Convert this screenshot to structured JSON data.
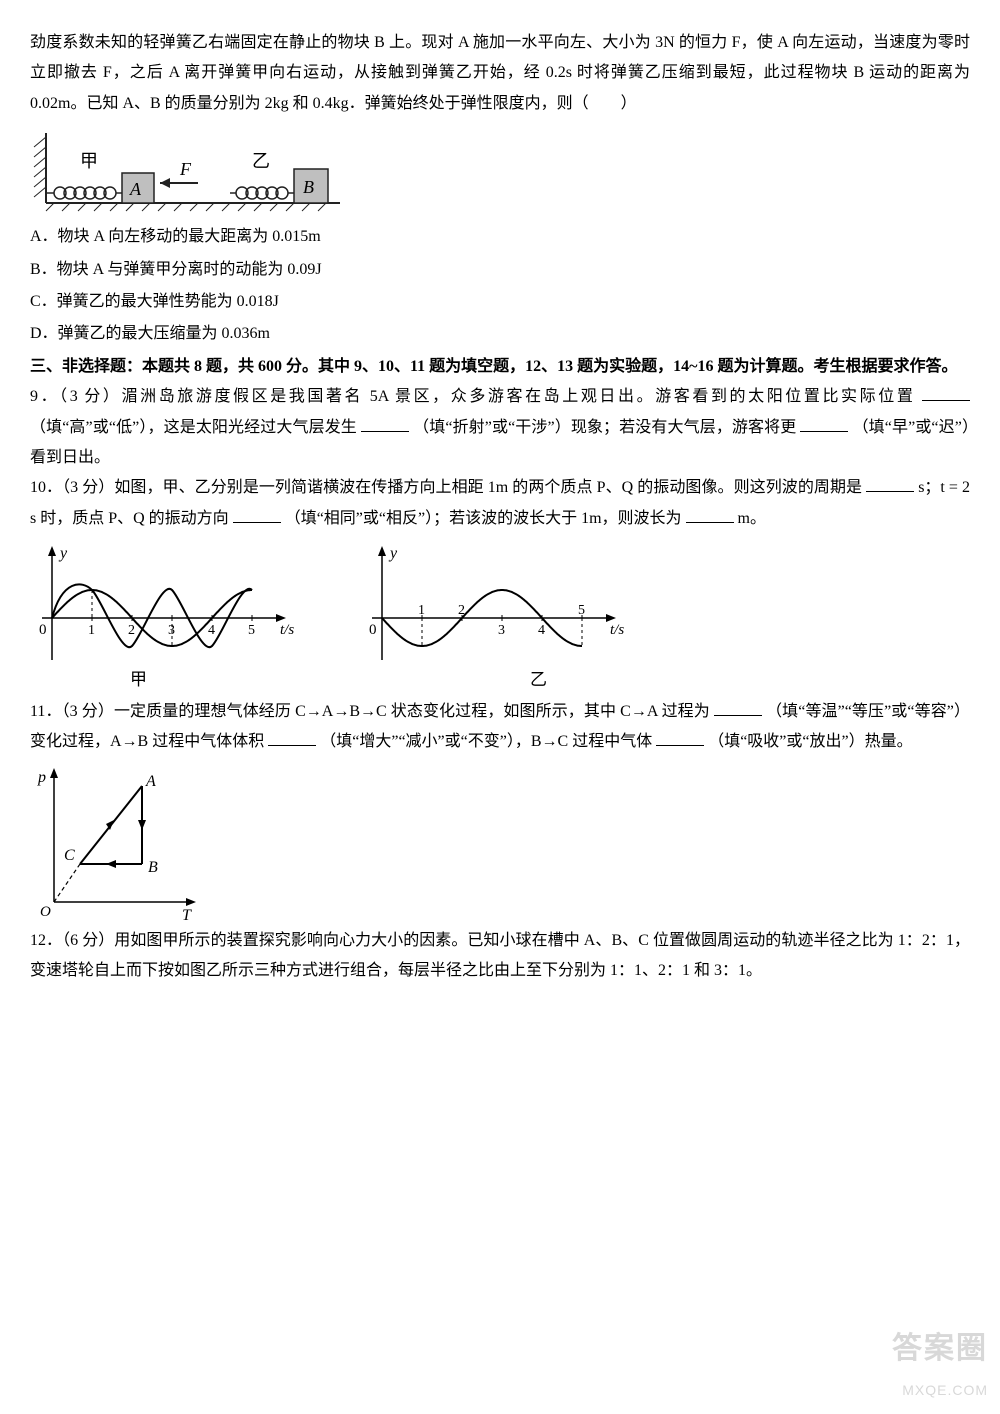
{
  "q8": {
    "stem": "劲度系数未知的轻弹簧乙右端固定在静止的物块 B 上。现对 A 施加一水平向左、大小为 3N 的恒力 F，使 A 向左运动，当速度为零时立即撤去 F，之后 A 离开弹簧甲向右运动，从接触到弹簧乙开始，经 0.2s 时将弹簧乙压缩到最短，此过程物块 B 运动的距离为 0.02m。已知 A、B 的质量分别为 2kg 和 0.4kg．弹簧始终处于弹性限度内，则（　　）",
    "optA": "A．物块 A 向左移动的最大距离为 0.015m",
    "optB": "B．物块 A 与弹簧甲分离时的动能为 0.09J",
    "optC": "C．弹簧乙的最大弹性势能为 0.018J",
    "optD": "D．弹簧乙的最大压缩量为 0.036m",
    "fig": {
      "labels": {
        "jia": "甲",
        "yi": "乙",
        "A": "A",
        "B": "B",
        "F": "F"
      },
      "colors": {
        "stroke": "#222",
        "block": "#bfbfbf",
        "ground": "#333"
      }
    }
  },
  "section3": "三、非选择题：本题共 8 题，共 600 分。其中 9、10、11 题为填空题，12、13 题为实验题，14~16 题为计算题。考生根据要求作答。",
  "q9": {
    "pre": "9．（3 分）湄洲岛旅游度假区是我国著名 5A 景区，众多游客在岛上观日出。游客看到的太阳位置比实际位置",
    "h1": "（填“高”或“低”），这是太阳光经过大气层发生",
    "h2": "（填“折射”或“干涉”）现象；若没有大气层，游客将更",
    "h3": "（填“早”或“迟”）看到日出。"
  },
  "q10": {
    "pre": "10．（3 分）如图，甲、乙分别是一列简谐横波在传播方向上相距 1m 的两个质点 P、Q 的振动图像。则这列波的周期是",
    "mid1": "s；t = 2 s 时，质点 P、Q 的振动方向",
    "mid2": "（填“相同”或“相反”）；若该波的波长大于 1m，则波长为",
    "mid3": "m。",
    "fig": {
      "xlabel": "t/s",
      "ylabel": "y",
      "ticks": [
        "1",
        "2",
        "3",
        "4",
        "5"
      ],
      "label_jia": "甲",
      "label_yi": "乙",
      "colors": {
        "curve": "#000",
        "axis": "#000",
        "dash": "#000"
      },
      "period": 4,
      "amplitude": 28
    }
  },
  "q11": {
    "pre": "11．（3 分）一定质量的理想气体经历 C→A→B→C 状态变化过程，如图所示，其中 C→A 过程为",
    "h1": "（填“等温”“等压”或“等容”）变化过程，A→B 过程中气体体积",
    "h2": "（填“增大”“减小”或“不变”），B→C 过程中气体",
    "h3": "（填“吸收”或“放出”）热量。",
    "fig": {
      "ylabel": "p",
      "xlabel": "T",
      "A": "A",
      "B": "B",
      "C": "C",
      "colors": {
        "axis": "#000",
        "line": "#000",
        "dash": "#000"
      }
    }
  },
  "q12": {
    "text": "12．（6 分）用如图甲所示的装置探究影响向心力大小的因素。已知小球在槽中 A、B、C 位置做圆周运动的轨迹半径之比为 1：2：1，变速塔轮自上而下按如图乙所示三种方式进行组合，每层半径之比由上至下分别为 1：1、2：1 和 3：1。"
  },
  "watermark": {
    "line1": "答案圈",
    "line2": "MXQE.COM"
  }
}
